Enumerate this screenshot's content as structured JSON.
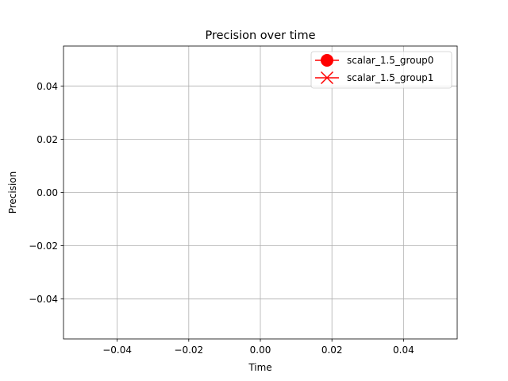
{
  "chart_data": {
    "type": "line",
    "title": "Precision over time",
    "xlabel": "Time",
    "ylabel": "Precision",
    "xlim": [
      -0.055,
      0.055
    ],
    "ylim": [
      -0.055,
      0.055
    ],
    "xticks": [
      -0.04,
      -0.02,
      0.0,
      0.02,
      0.04
    ],
    "xtick_labels": [
      "−0.04",
      "−0.02",
      "0.00",
      "0.02",
      "0.04"
    ],
    "yticks": [
      -0.04,
      -0.02,
      0.0,
      0.02,
      0.04
    ],
    "ytick_labels": [
      "−0.04",
      "−0.02",
      "0.00",
      "0.02",
      "0.04"
    ],
    "grid": true,
    "legend_position": "top-right",
    "series": [
      {
        "name": "scalar_1.5_group0",
        "x": [],
        "y": [],
        "color": "#ff0000",
        "marker": "circle"
      },
      {
        "name": "scalar_1.5_group1",
        "x": [],
        "y": [],
        "color": "#ff0000",
        "marker": "x"
      }
    ]
  }
}
